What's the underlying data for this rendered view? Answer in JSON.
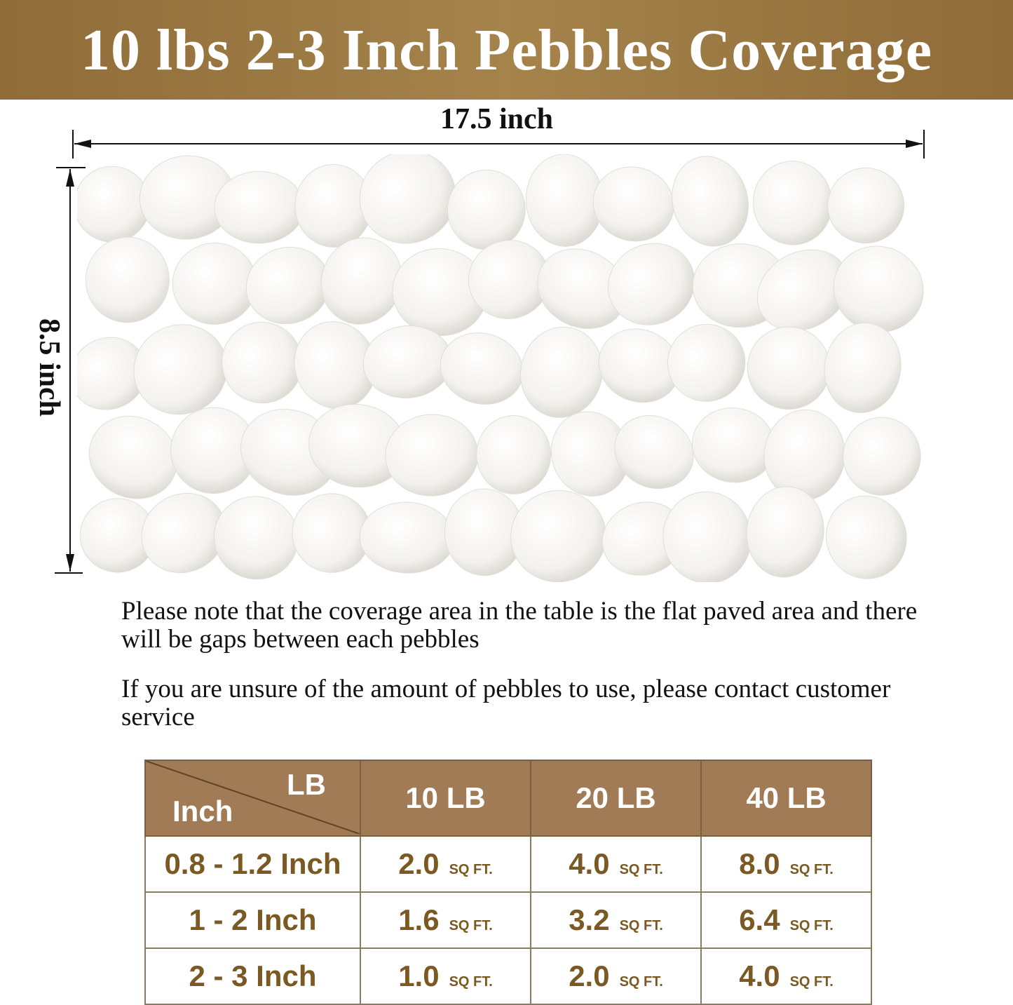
{
  "title": "10 lbs 2-3 Inch Pebbles Coverage",
  "dimensions": {
    "width": "17.5 inch",
    "height": "8.5 inch"
  },
  "notes": [
    "Please note that the coverage area in the table is the flat paved area and there will be gaps between each pebbles",
    "If you are unsure of the amount of pebbles to use, please contact customer service"
  ],
  "table": {
    "corner_top": "LB",
    "corner_bottom": "Inch",
    "columns": [
      "10 LB",
      "20 LB",
      "40 LB"
    ],
    "unit": "SQ FT.",
    "rows": [
      {
        "size": "0.8 - 1.2 Inch",
        "values": [
          "2.0",
          "4.0",
          "8.0"
        ]
      },
      {
        "size": "1 - 2 Inch",
        "values": [
          "1.6",
          "3.2",
          "6.4"
        ]
      },
      {
        "size": "2 - 3 Inch",
        "values": [
          "1.0",
          "2.0",
          "4.0"
        ]
      }
    ]
  },
  "colors": {
    "banner": "#9b7a42",
    "header": "#a07b55",
    "value_text": "#7a5a22"
  }
}
